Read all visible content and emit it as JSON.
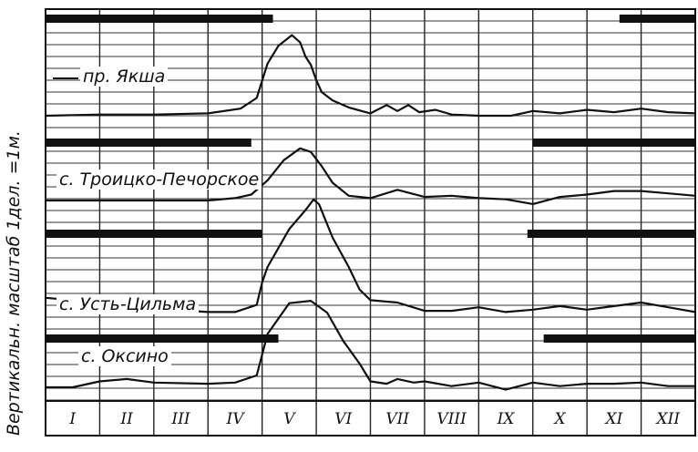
{
  "chart_data": {
    "type": "line",
    "title": "",
    "xlabel": "",
    "ylabel": "Вертикальн. масштаб 1дел. =1м.",
    "categories": [
      "I",
      "II",
      "III",
      "IV",
      "V",
      "VI",
      "VII",
      "VIII",
      "IX",
      "X",
      "XI",
      "XII"
    ],
    "x_unit": "month",
    "y_unit": "relative level (m, 1 division = 1 m)",
    "grid": true,
    "legend": "none (labels drawn next to each curve)",
    "series": [
      {
        "name": "пр. Якша",
        "ice_cover": [
          [
            0,
            4.2
          ],
          [
            10.6,
            12
          ]
        ],
        "x": [
          0,
          1,
          2,
          3,
          3.6,
          3.9,
          4.1,
          4.3,
          4.55,
          4.7,
          4.8,
          4.9,
          5.0,
          5.1,
          5.3,
          5.6,
          6,
          6.3,
          6.5,
          6.7,
          6.9,
          7.2,
          7.5,
          8,
          8.6,
          9,
          9.5,
          10,
          10.5,
          11,
          11.5,
          12
        ],
        "y": [
          0,
          0.1,
          0.1,
          0.2,
          0.6,
          1.5,
          4.4,
          5.9,
          6.8,
          6.2,
          5.0,
          4.3,
          3.0,
          2.0,
          1.3,
          0.7,
          0.2,
          0.9,
          0.4,
          0.9,
          0.3,
          0.5,
          0.1,
          0,
          0,
          0.4,
          0.2,
          0.5,
          0.3,
          0.6,
          0.3,
          0.2
        ]
      },
      {
        "name": "с. Троицко-Печорское",
        "ice_cover": [
          [
            0,
            3.8
          ],
          [
            9.0,
            12
          ]
        ],
        "x": [
          0,
          1,
          2,
          3,
          3.5,
          3.8,
          4.1,
          4.4,
          4.7,
          4.9,
          5.1,
          5.3,
          5.6,
          6,
          6.5,
          7,
          7.5,
          8,
          8.5,
          9,
          9.5,
          10,
          10.5,
          11,
          11.5,
          12
        ],
        "y": [
          0,
          0,
          0,
          0,
          0.2,
          0.5,
          1.7,
          3.4,
          4.4,
          4.1,
          2.9,
          1.5,
          0.4,
          0.2,
          0.9,
          0.3,
          0.4,
          0.2,
          0.1,
          -0.3,
          0.3,
          0.5,
          0.8,
          0.8,
          0.6,
          0.4
        ]
      },
      {
        "name": "с. Усть-Цильма",
        "ice_cover": [
          [
            0,
            4.0
          ],
          [
            8.9,
            12
          ]
        ],
        "x": [
          0,
          1,
          2,
          3,
          3.5,
          3.9,
          4.0,
          4.1,
          4.5,
          4.8,
          4.95,
          5.05,
          5.3,
          5.6,
          5.8,
          6,
          6.5,
          7,
          7.5,
          8,
          8.5,
          9,
          9.5,
          10,
          10.5,
          11,
          11.5,
          12
        ],
        "y": [
          1.4,
          1.0,
          0.5,
          0.2,
          0.2,
          0.8,
          2.7,
          4.0,
          7.2,
          8.8,
          9.7,
          9.3,
          6.5,
          4.0,
          2.1,
          1.2,
          1.0,
          0.3,
          0.3,
          0.6,
          0.2,
          0.4,
          0.7,
          0.4,
          0.7,
          1.0,
          0.6,
          0.2
        ]
      },
      {
        "name": "с. Оксино",
        "ice_cover": [
          [
            0,
            4.3
          ],
          [
            9.2,
            12
          ]
        ],
        "x": [
          0,
          0.5,
          1,
          1.5,
          2,
          3,
          3.5,
          3.9,
          4.1,
          4.5,
          4.9,
          5.2,
          5.5,
          5.8,
          6,
          6.3,
          6.5,
          6.8,
          7,
          7.5,
          8,
          8.5,
          9,
          9.5,
          10,
          10.5,
          11,
          11.5,
          12
        ],
        "y": [
          0,
          0,
          0.5,
          0.7,
          0.4,
          0.3,
          0.4,
          1.0,
          4.5,
          7.1,
          7.3,
          6.3,
          3.9,
          2.0,
          0.5,
          0.3,
          0.7,
          0.4,
          0.5,
          0.1,
          0.4,
          -0.2,
          0.4,
          0.1,
          0.3,
          0.3,
          0.4,
          0.1,
          0.1
        ]
      }
    ]
  }
}
